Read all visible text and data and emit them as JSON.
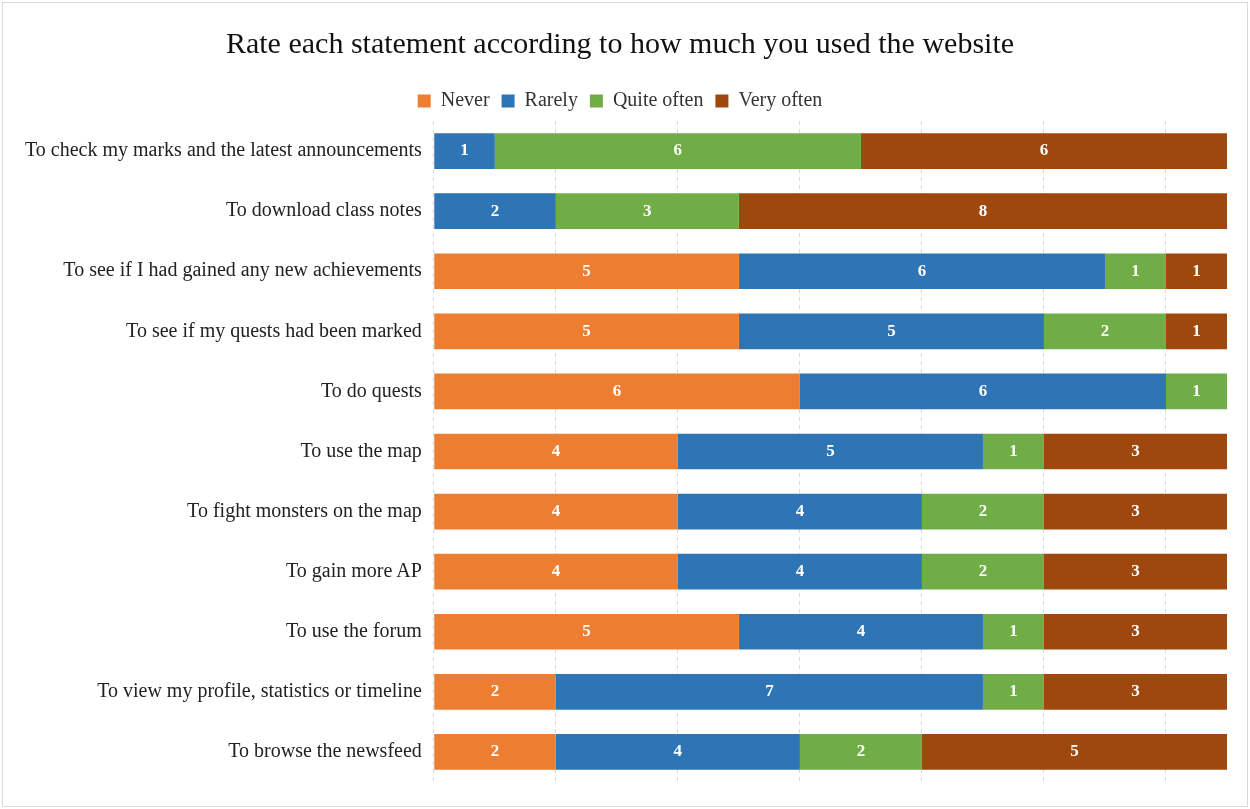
{
  "chart_data": {
    "type": "bar",
    "orientation": "horizontal",
    "stacked": true,
    "title": "Rate each statement according to how much you used the website",
    "categories": [
      "To check my marks and the latest announcements",
      "To download class notes",
      "To see if I had gained any new achievements",
      "To see if my quests had been marked",
      "To do quests",
      "To use the map",
      "To fight monsters on the map",
      "To gain more AP",
      "To use the forum",
      "To view my profile, statistics or timeline",
      "To browse the newsfeed"
    ],
    "series": [
      {
        "name": "Never",
        "color": "#ed7d31",
        "values": [
          null,
          null,
          5,
          5,
          6,
          4,
          4,
          4,
          5,
          2,
          2
        ]
      },
      {
        "name": "Rarely",
        "color": "#2e75b6",
        "values": [
          1,
          2,
          6,
          5,
          6,
          5,
          4,
          4,
          4,
          7,
          4
        ]
      },
      {
        "name": "Quite often",
        "color": "#70ad47",
        "values": [
          6,
          3,
          1,
          2,
          1,
          1,
          2,
          2,
          1,
          1,
          2
        ]
      },
      {
        "name": "Very often",
        "color": "#9e480e",
        "values": [
          6,
          8,
          1,
          1,
          null,
          3,
          3,
          3,
          3,
          3,
          5
        ]
      }
    ],
    "xlim": [
      0,
      13
    ],
    "xticks": [
      {
        "value": 0,
        "label": null
      },
      {
        "value": 2,
        "label": null
      },
      {
        "value": 4,
        "label": null
      },
      {
        "value": 6,
        "label": null
      },
      {
        "value": 8,
        "label": null
      },
      {
        "value": 10,
        "label": null
      },
      {
        "value": 12,
        "label": null
      }
    ],
    "tick_labels": "y",
    "grid": "x",
    "line_style": "dashed",
    "legend": "top",
    "data_labels": true
  }
}
